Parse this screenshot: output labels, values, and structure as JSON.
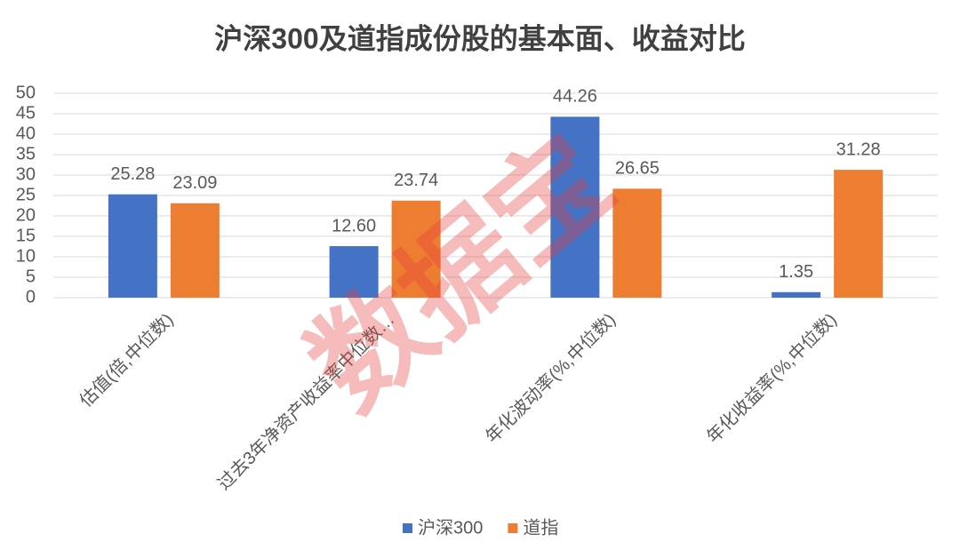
{
  "chart_data": {
    "type": "bar",
    "title": "沪深300及道指成份股的基本面、收益对比",
    "watermark": "数据宝",
    "categories": [
      "估值(倍,中位数)",
      "过去3年净资产收益率中位数…",
      "年化波动率(%,中位数)",
      "年化收益率(%,中位数)"
    ],
    "series": [
      {
        "name": "沪深300",
        "color": "#4472c4",
        "values": [
          25.28,
          12.6,
          44.26,
          1.35
        ],
        "value_labels": [
          "25.28",
          "12.60",
          "44.26",
          "1.35"
        ]
      },
      {
        "name": "道指",
        "color": "#ed7d31",
        "values": [
          23.09,
          23.74,
          26.65,
          31.28
        ],
        "value_labels": [
          "23.09",
          "23.74",
          "26.65",
          "31.28"
        ]
      }
    ],
    "ylim": [
      0,
      50
    ],
    "yticks": [
      0,
      5,
      10,
      15,
      20,
      25,
      30,
      35,
      40,
      45,
      50
    ],
    "grid": true,
    "legend": "bottom"
  }
}
